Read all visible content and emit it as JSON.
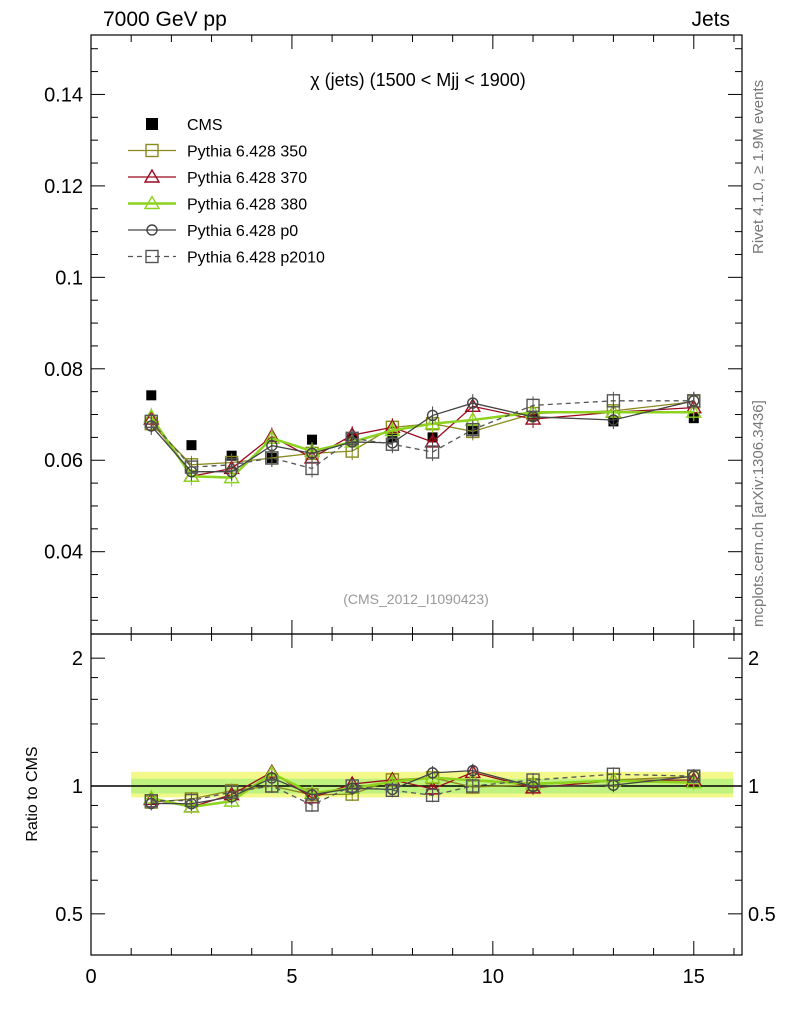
{
  "header": {
    "left": "7000 GeV pp",
    "right": "Jets"
  },
  "side_labels": {
    "rivet": "Rivet 4.1.0, ≥ 1.9M events",
    "mcplots": "mcplots.cern.ch [arXiv:1306.3436]"
  },
  "colors": {
    "cms": "#000000",
    "p350": "#8a8a1e",
    "p370": "#9b0a1e",
    "p380": "#8cd21e",
    "p0": "#444444",
    "p2010": "#555555",
    "band_outer": "#f2f98a",
    "band_inner": "#bff27f"
  },
  "chart_data": [
    {
      "type": "line",
      "title": "χ (jets) (1500 < Mjj < 1900)",
      "watermark": "(CMS_2012_I1090423)",
      "xlabel": "",
      "ylabel": "",
      "xlim": [
        0,
        16.2
      ],
      "ylim": [
        0.022,
        0.153
      ],
      "yticks": [
        0.04,
        0.06,
        0.08,
        0.1,
        0.12,
        0.14
      ],
      "ytick_labels": [
        "0.04",
        "0.06",
        "0.08",
        "0.1",
        "0.12",
        "0.14"
      ],
      "x": [
        1.5,
        2.5,
        3.5,
        4.5,
        5.5,
        6.5,
        7.5,
        8.5,
        9.5,
        11,
        13,
        15
      ],
      "series": [
        {
          "name": "CMS",
          "key": "cms",
          "style": "data",
          "values": [
            0.0742,
            0.0633,
            0.061,
            0.0605,
            0.0645,
            0.0648,
            0.065,
            0.065,
            0.0667,
            0.0697,
            0.0685,
            0.0692
          ]
        },
        {
          "name": "Pythia 6.428 350",
          "key": "p350",
          "style": "solid",
          "marker": "square",
          "values": [
            0.068,
            0.059,
            0.0595,
            0.0605,
            0.0615,
            0.062,
            0.0672,
            0.068,
            0.0663,
            0.0702,
            0.0708,
            0.0728
          ]
        },
        {
          "name": "Pythia 6.428 370",
          "key": "p370",
          "style": "solid",
          "marker": "triangle",
          "values": [
            0.069,
            0.0565,
            0.0582,
            0.0652,
            0.0605,
            0.0655,
            0.0672,
            0.064,
            0.0718,
            0.069,
            0.0705,
            0.0715
          ]
        },
        {
          "name": "Pythia 6.428 380",
          "key": "p380",
          "style": "solid-thick",
          "marker": "triangle",
          "values": [
            0.0695,
            0.0565,
            0.0562,
            0.0648,
            0.062,
            0.064,
            0.0665,
            0.068,
            0.0688,
            0.0705,
            0.0705,
            0.0705
          ]
        },
        {
          "name": "Pythia 6.428 p0",
          "key": "p0",
          "style": "solid",
          "marker": "circle",
          "values": [
            0.0675,
            0.0575,
            0.0575,
            0.0632,
            0.0615,
            0.064,
            0.0638,
            0.0698,
            0.0725,
            0.0695,
            0.0688,
            0.073
          ]
        },
        {
          "name": "Pythia 6.428 p2010",
          "key": "p2010",
          "style": "dashed",
          "marker": "square",
          "values": [
            0.0685,
            0.0585,
            0.059,
            0.0605,
            0.0582,
            0.0648,
            0.0635,
            0.0618,
            0.0667,
            0.072,
            0.073,
            0.073
          ]
        }
      ],
      "xerr": [
        0.5,
        0.5,
        0.5,
        0.5,
        0.5,
        0.5,
        0.5,
        0.5,
        0.5,
        1,
        1,
        1
      ],
      "legend_position": "top-left"
    },
    {
      "type": "line",
      "title": "",
      "xlabel": "",
      "ylabel": "Ratio to CMS",
      "xlim": [
        0,
        16.2
      ],
      "ylim": [
        0.4,
        2.28
      ],
      "yscale": "log",
      "yticks": [
        0.5,
        1,
        2
      ],
      "ytick_labels": [
        "0.5",
        "1",
        "2"
      ],
      "xticks": [
        0,
        5,
        10,
        15
      ],
      "xtick_labels": [
        "0",
        "5",
        "10",
        "15"
      ],
      "band_outer": [
        1.0,
        15.98,
        0.94,
        1.08
      ],
      "band_inner": [
        1.0,
        15.98,
        0.96,
        1.04
      ]
    }
  ]
}
